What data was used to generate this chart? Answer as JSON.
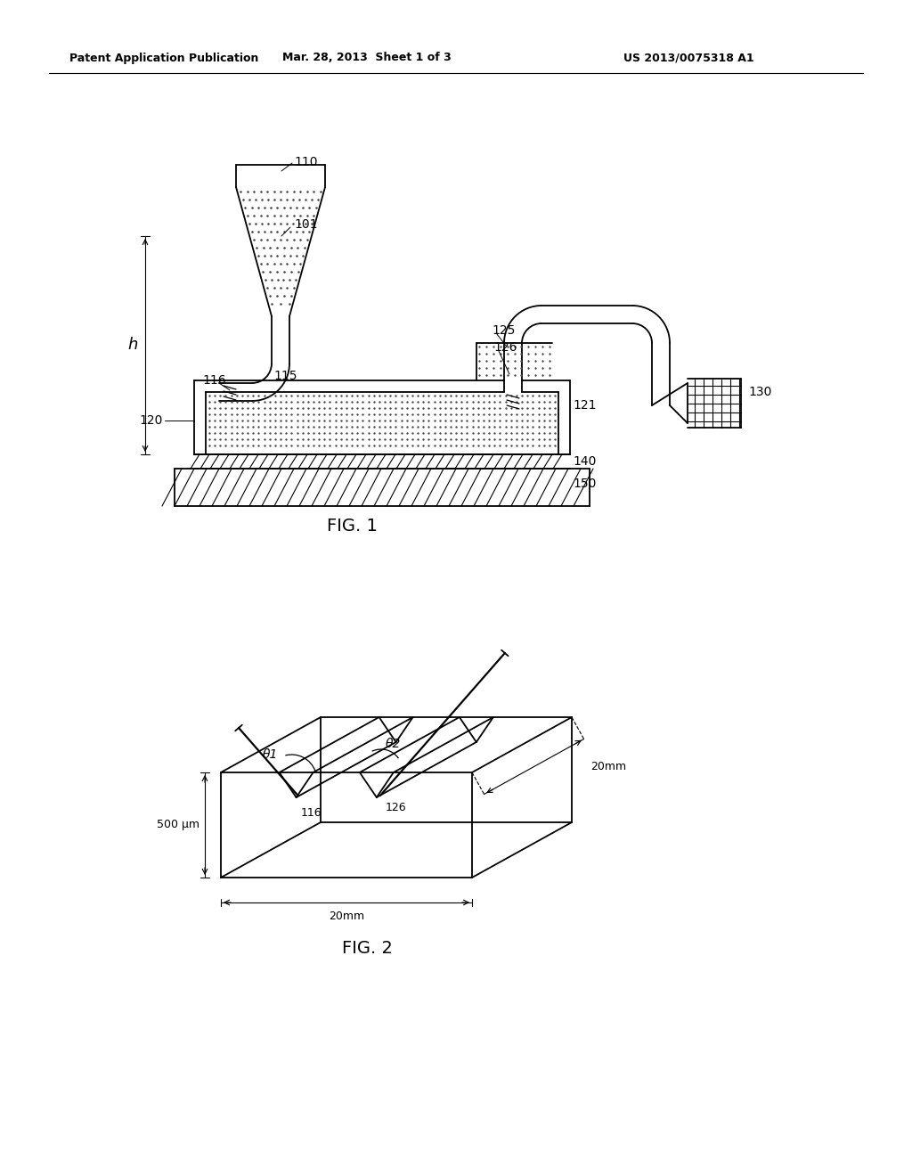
{
  "bg_color": "#ffffff",
  "line_color": "#000000",
  "header_left": "Patent Application Publication",
  "header_mid": "Mar. 28, 2013  Sheet 1 of 3",
  "header_right": "US 2013/0075318 A1",
  "fig1_label": "FIG. 1",
  "fig2_label": "FIG. 2",
  "label_110": "110",
  "label_101": "101",
  "label_115": "115",
  "label_116": "116",
  "label_120": "120",
  "label_121": "121",
  "label_125": "125",
  "label_126": "126",
  "label_130": "130",
  "label_140": "140",
  "label_150": "150",
  "label_h": "h",
  "label_theta1": "θ1",
  "label_theta2": "θ2",
  "label_20mm_right": "20mm",
  "label_20mm_bottom": "20mm",
  "label_500um": "500 μm"
}
